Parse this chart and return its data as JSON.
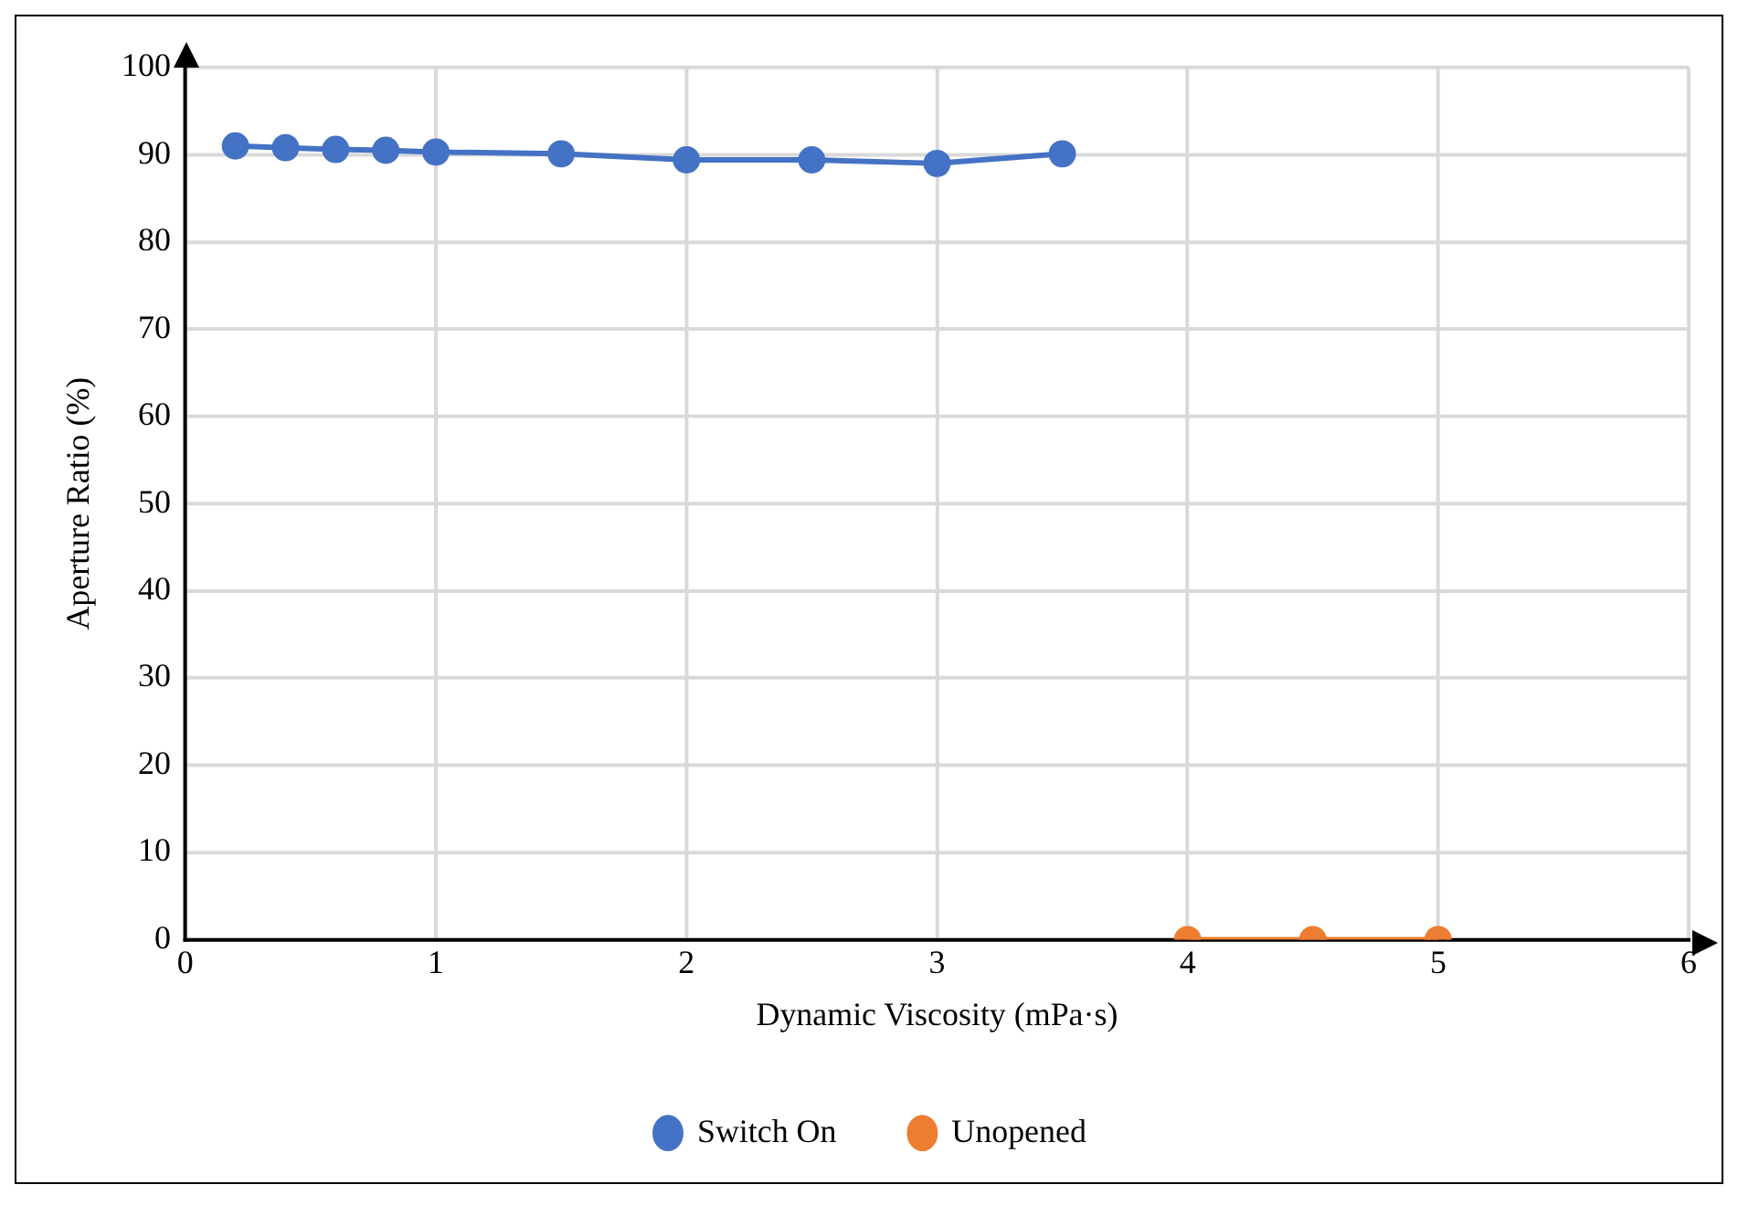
{
  "chart_data": {
    "type": "line",
    "xlabel": "Dynamic Viscosity (mPa·s)",
    "ylabel": "Aperture Ratio (%)",
    "series": [
      {
        "name": "Switch On",
        "color": "#4472c4",
        "x": [
          0.2,
          0.4,
          0.6,
          0.8,
          1,
          1.5,
          2,
          2.5,
          3,
          3.5
        ],
        "values": [
          91.0,
          90.8,
          90.6,
          90.5,
          90.3,
          90.1,
          89.4,
          89.4,
          89.0,
          90.1
        ]
      },
      {
        "name": "Unopened",
        "color": "#ed7d31",
        "x": [
          4,
          4.5,
          5
        ],
        "values": [
          0,
          0,
          0
        ]
      }
    ],
    "xlim": [
      0,
      6
    ],
    "xticks": [
      0,
      1,
      2,
      3,
      4,
      5,
      6
    ],
    "ylim": [
      0,
      100
    ],
    "yticks": [
      0,
      10,
      20,
      30,
      40,
      50,
      60,
      70,
      80,
      90,
      100
    ],
    "grid": true,
    "legend": "bottom",
    "marker": "circle",
    "line_style": "solid"
  }
}
